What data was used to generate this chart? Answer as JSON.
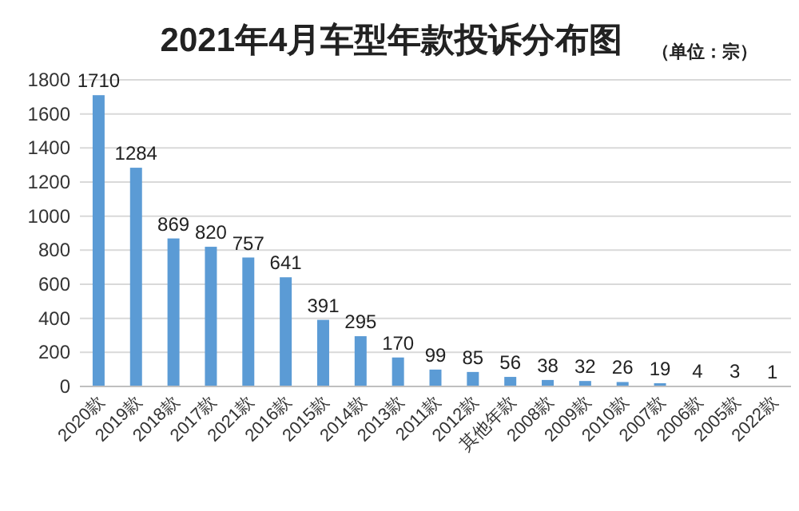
{
  "chart_data": {
    "type": "bar",
    "title": "2021年4月车型年款投诉分布图",
    "subtitle": "（单位：宗）",
    "categories": [
      "2020款",
      "2019款",
      "2018款",
      "2017款",
      "2021款",
      "2016款",
      "2015款",
      "2014款",
      "2013款",
      "2011款",
      "2012款",
      "其他年款",
      "2008款",
      "2009款",
      "2010款",
      "2007款",
      "2006款",
      "2005款",
      "2022款"
    ],
    "values": [
      1710,
      1284,
      869,
      820,
      757,
      641,
      391,
      295,
      170,
      99,
      85,
      56,
      38,
      32,
      26,
      19,
      4,
      3,
      1
    ],
    "color": "#5b9bd5",
    "ylim": [
      0,
      1800
    ],
    "yticks": [
      0,
      200,
      400,
      600,
      800,
      1000,
      1200,
      1400,
      1600,
      1800
    ],
    "grid": "y",
    "data_labels": true
  }
}
